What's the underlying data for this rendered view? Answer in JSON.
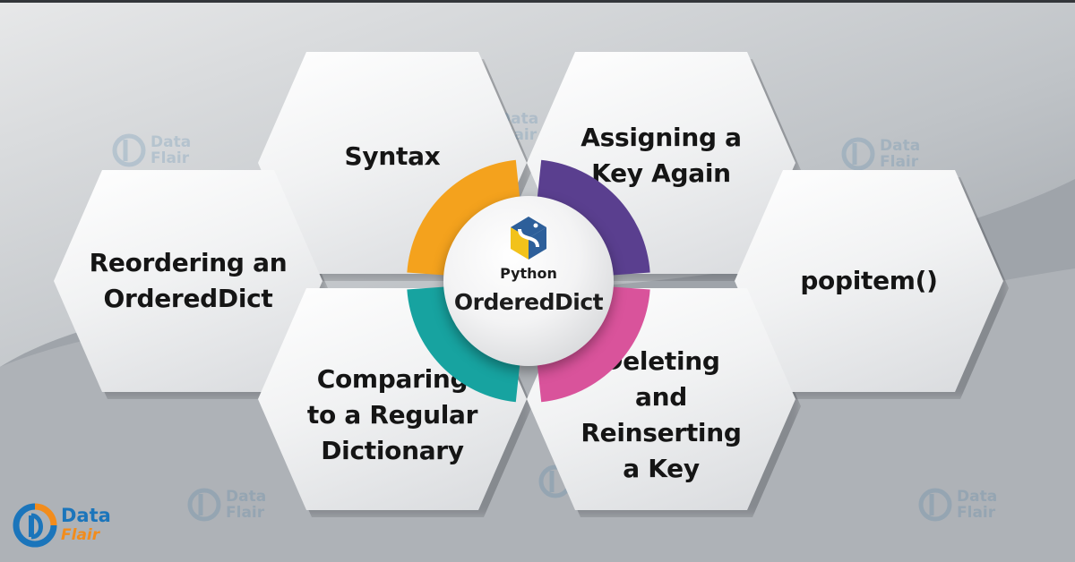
{
  "center": {
    "subtitle": "Python",
    "title": "OrderedDict",
    "logo_icon": "python-logo-icon"
  },
  "hexagons": [
    {
      "id": "syntax",
      "label": "Syntax"
    },
    {
      "id": "assigning",
      "label": "Assigning a\nKey Again"
    },
    {
      "id": "reordering",
      "label": "Reordering an\nOrderedDict"
    },
    {
      "id": "popitem",
      "label": "popitem()"
    },
    {
      "id": "comparing",
      "label": "Comparing\nto a Regular\nDictionary"
    },
    {
      "id": "deleting",
      "label": "Deleting\nand Reinserting\na Key"
    }
  ],
  "ring_colors": {
    "orange": "#f4a21d",
    "purple": "#5a3f8f",
    "teal": "#17a3a0",
    "pink": "#d9539b"
  },
  "brand": {
    "data": "Data",
    "flair": "Flair",
    "icon": "dataflair-logo-icon"
  },
  "watermark": {
    "data": "Data",
    "flair": "Flair"
  }
}
